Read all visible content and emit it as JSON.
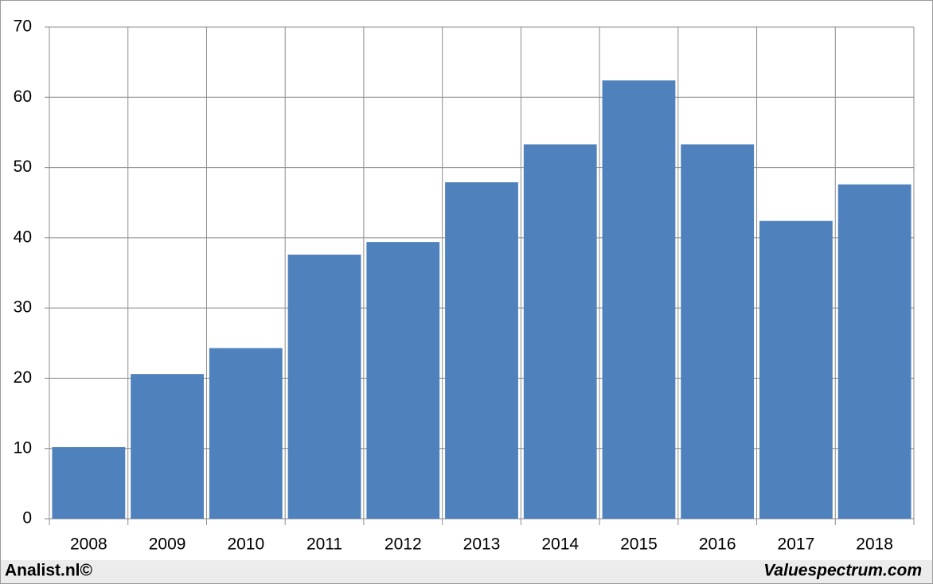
{
  "chart_data": {
    "type": "bar",
    "categories": [
      "2008",
      "2009",
      "2010",
      "2011",
      "2012",
      "2013",
      "2014",
      "2015",
      "2016",
      "2017",
      "2018"
    ],
    "values": [
      10.2,
      20.6,
      24.3,
      37.6,
      39.4,
      47.9,
      53.3,
      62.4,
      53.3,
      42.4,
      47.6
    ],
    "color": "#4f81bd",
    "ylim": [
      0,
      70
    ],
    "yticks": [
      0,
      10,
      20,
      30,
      40,
      50,
      60,
      70
    ],
    "grid": true,
    "source_left": "Analist.nl©",
    "source_right": "Valuespectrum.com"
  }
}
